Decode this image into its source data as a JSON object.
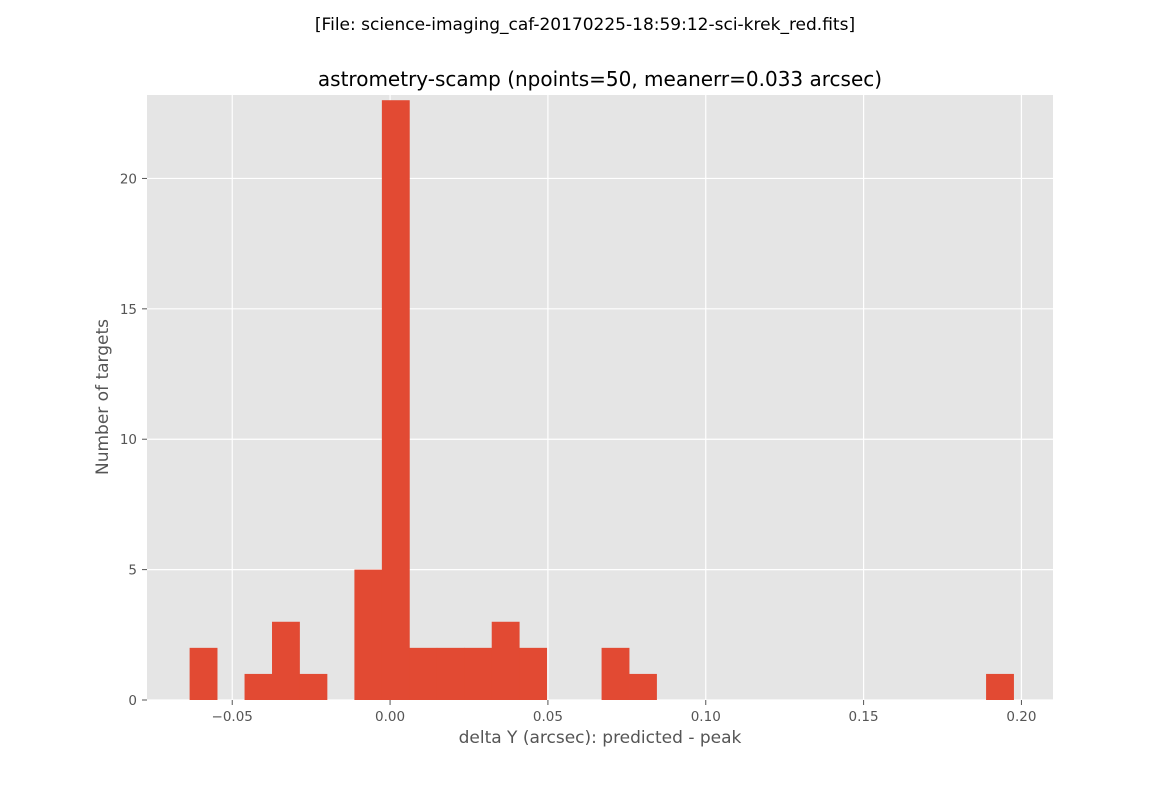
{
  "figure": {
    "suptitle": "[File: science-imaging_caf-20170225-18:59:12-sci-krek_red.fits]"
  },
  "chart_data": {
    "type": "bar",
    "title": "astrometry-scamp (npoints=50, meanerr=0.033 arcsec)",
    "xlabel": "delta Y (arcsec): predicted - peak",
    "ylabel": "Number of targets",
    "xlim": [
      -0.077,
      0.21
    ],
    "ylim": [
      0,
      23.2
    ],
    "xticks": [
      -0.05,
      0.0,
      0.05,
      0.1,
      0.15,
      0.2
    ],
    "xtick_labels": [
      "−0.05",
      "0.00",
      "0.05",
      "0.10",
      "0.15",
      "0.20"
    ],
    "yticks": [
      0,
      5,
      10,
      15,
      20
    ],
    "ytick_labels": [
      "0",
      "5",
      "10",
      "15",
      "20"
    ],
    "grid": true,
    "background": "#e5e5e5",
    "bar_color": "#e24a33",
    "bins": [
      {
        "x0": -0.0635,
        "x1": -0.0548,
        "count": 2
      },
      {
        "x0": -0.0548,
        "x1": -0.0461,
        "count": 0
      },
      {
        "x0": -0.0461,
        "x1": -0.0374,
        "count": 1
      },
      {
        "x0": -0.0374,
        "x1": -0.0287,
        "count": 3
      },
      {
        "x0": -0.0287,
        "x1": -0.02,
        "count": 1
      },
      {
        "x0": -0.02,
        "x1": -0.0113,
        "count": 0
      },
      {
        "x0": -0.0113,
        "x1": -0.0026,
        "count": 5
      },
      {
        "x0": -0.0026,
        "x1": 0.0061,
        "count": 23
      },
      {
        "x0": 0.0061,
        "x1": 0.0148,
        "count": 2
      },
      {
        "x0": 0.0148,
        "x1": 0.0235,
        "count": 2
      },
      {
        "x0": 0.0235,
        "x1": 0.0322,
        "count": 2
      },
      {
        "x0": 0.0322,
        "x1": 0.0409,
        "count": 3
      },
      {
        "x0": 0.0409,
        "x1": 0.0496,
        "count": 2
      },
      {
        "x0": 0.0496,
        "x1": 0.0583,
        "count": 0
      },
      {
        "x0": 0.0583,
        "x1": 0.067,
        "count": 0
      },
      {
        "x0": 0.067,
        "x1": 0.0757,
        "count": 2
      },
      {
        "x0": 0.0757,
        "x1": 0.0844,
        "count": 1
      },
      {
        "x0": 0.0844,
        "x1": 0.0931,
        "count": 0
      },
      {
        "x0": 0.0931,
        "x1": 0.1018,
        "count": 0
      },
      {
        "x0": 0.1018,
        "x1": 0.1105,
        "count": 0
      },
      {
        "x0": 0.1105,
        "x1": 0.1192,
        "count": 0
      },
      {
        "x0": 0.1192,
        "x1": 0.1279,
        "count": 0
      },
      {
        "x0": 0.1279,
        "x1": 0.1366,
        "count": 0
      },
      {
        "x0": 0.1366,
        "x1": 0.1453,
        "count": 0
      },
      {
        "x0": 0.1453,
        "x1": 0.154,
        "count": 0
      },
      {
        "x0": 0.154,
        "x1": 0.1627,
        "count": 0
      },
      {
        "x0": 0.1627,
        "x1": 0.1714,
        "count": 0
      },
      {
        "x0": 0.1714,
        "x1": 0.1801,
        "count": 0
      },
      {
        "x0": 0.1801,
        "x1": 0.1888,
        "count": 0
      },
      {
        "x0": 0.1888,
        "x1": 0.1975,
        "count": 1
      }
    ]
  }
}
